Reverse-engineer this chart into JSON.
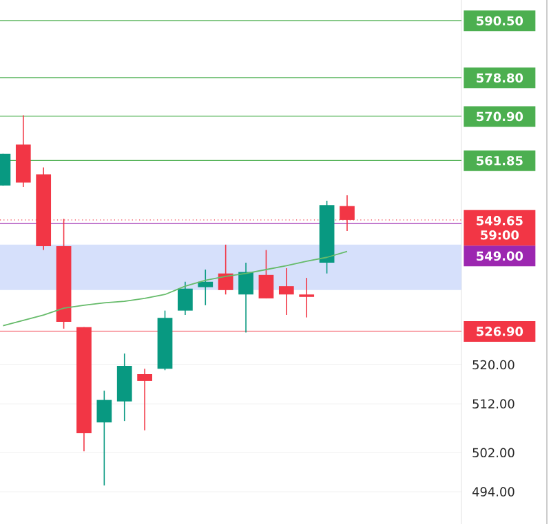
{
  "chart_data": {
    "type": "candlestick",
    "categories": [
      null,
      null,
      null,
      null,
      null,
      null,
      null,
      null,
      null,
      null,
      null,
      null,
      null,
      null,
      null,
      null,
      null,
      null
    ],
    "ohlc": [
      [
        556.7,
        563.2,
        556.7,
        563.2
      ],
      [
        565.1,
        571.1,
        556.4,
        557.3
      ],
      [
        559.0,
        560.4,
        543.5,
        544.3
      ],
      [
        544.3,
        549.9,
        527.4,
        528.8
      ],
      [
        527.7,
        527.7,
        502.3,
        506.0
      ],
      [
        508.2,
        514.7,
        495.3,
        512.8
      ],
      [
        512.5,
        522.3,
        508.5,
        519.8
      ],
      [
        518.1,
        519.2,
        506.6,
        516.7
      ],
      [
        519.2,
        531.1,
        518.9,
        529.6
      ],
      [
        531.1,
        537.0,
        530.2,
        535.6
      ],
      [
        535.9,
        539.5,
        532.2,
        537.0
      ],
      [
        538.7,
        544.6,
        534.4,
        535.3
      ],
      [
        534.4,
        540.9,
        526.6,
        539.0
      ],
      [
        538.4,
        543.5,
        533.6,
        533.6
      ],
      [
        536.1,
        539.8,
        530.2,
        534.4
      ],
      [
        534.4,
        537.8,
        529.7,
        533.9
      ],
      [
        540.9,
        553.6,
        538.7,
        552.7
      ],
      [
        552.5,
        554.7,
        547.4,
        549.65
      ]
    ],
    "colors": [
      "#089981",
      "#f23645",
      "#f23645",
      "#f23645",
      "#f23645",
      "#089981",
      "#089981",
      "#f23645",
      "#089981",
      "#089981",
      "#089981",
      "#f23645",
      "#089981",
      "#f23645",
      "#f23645",
      "#f23645",
      "#089981",
      "#f23645"
    ],
    "series": [
      {
        "type": "line",
        "color": "#66bb6a",
        "values": [
          528.0,
          529.1,
          530.2,
          531.6,
          532.2,
          532.7,
          533.0,
          533.6,
          534.4,
          536.1,
          537.3,
          538.1,
          538.7,
          539.5,
          540.3,
          541.2,
          542.0,
          543.2
        ]
      }
    ],
    "ylim": [
      487.4,
      594.7
    ],
    "yticks": [
      {
        "value": 494,
        "label": "494.00"
      },
      {
        "value": 502,
        "label": "502.00"
      },
      {
        "value": 512,
        "label": "512.00"
      },
      {
        "value": 520,
        "label": "520.00"
      }
    ],
    "tick_labels": "y",
    "grid": "y",
    "ref_lines": [
      {
        "axis": "y",
        "value": 590.5,
        "label": "590.50",
        "color": "#4caf50"
      },
      {
        "axis": "y",
        "value": 578.8,
        "label": "578.80",
        "color": "#4caf50"
      },
      {
        "axis": "y",
        "value": 570.9,
        "label": "570.90",
        "color": "#4caf50"
      },
      {
        "axis": "y",
        "value": 561.85,
        "label": "561.85",
        "color": "#4caf50"
      },
      {
        "axis": "y",
        "value": 549.65,
        "label": "549.65",
        "color": "#f23645",
        "line_style": "dotted"
      },
      {
        "axis": "y",
        "value": 549.0,
        "label": "549.00",
        "color": "#9c27b0"
      },
      {
        "axis": "y",
        "value": 526.9,
        "label": "526.90",
        "color": "#f23645"
      }
    ],
    "bands": [
      {
        "axis": "y",
        "from": 535.3,
        "to": 544.6,
        "color": "#d6e0fb"
      }
    ],
    "annotations": [
      "59:00"
    ],
    "marker": "none"
  }
}
